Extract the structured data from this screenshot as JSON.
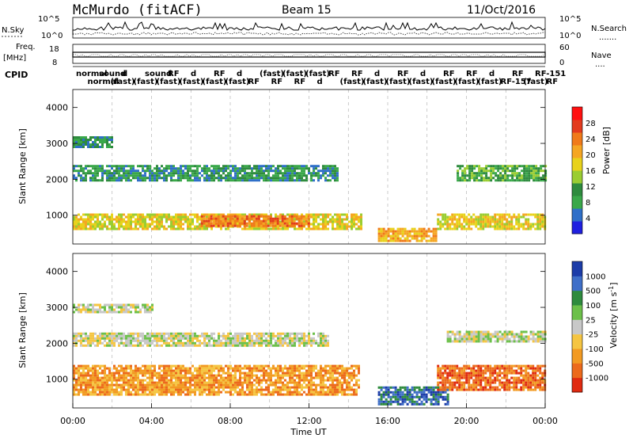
{
  "header": {
    "station": "McMurdo (fitACF)",
    "beam": "Beam 15",
    "date": "11/Oct/2016"
  },
  "top_panels": {
    "nsky": {
      "label": "N.Sky",
      "ticks": [
        "10^5",
        "10^0"
      ],
      "right_label": "N.Search",
      "right_ticks": [
        "10^5",
        "10^0"
      ],
      "dotted_note": "......."
    },
    "freq": {
      "label_lines": [
        "Freq.",
        "[MHz]"
      ],
      "ticks": [
        "18",
        "8"
      ],
      "right_label": "Nave",
      "right_ticks": [
        "60",
        "0"
      ],
      "dotted_note": "...."
    },
    "cpid": {
      "label": "CPID",
      "entries": [
        "normal",
        "normal",
        "sound",
        "(fast)",
        "d",
        "(fast)",
        "sound",
        "(fast)",
        "RF",
        "(fast)",
        "d",
        "(fast)",
        "RF",
        "(fast)",
        "d",
        "RF",
        "(fast)",
        "RF",
        "(fast)",
        "RF",
        "(fast)",
        "d",
        "RF",
        "(fast)",
        "RF",
        "(fast)",
        "d",
        "(fast)",
        "RF",
        "(fast)",
        "d",
        "(fast)",
        "RF",
        "(fast)",
        "RF",
        "(fast)",
        "d",
        "RF-157",
        "RF",
        "(fast)",
        "RF-151",
        "RF"
      ]
    }
  },
  "colors": {
    "power_scale": [
      "#1f1fe0",
      "#2f6fc8",
      "#3aa84a",
      "#2e8b3e",
      "#9acd32",
      "#e8d21c",
      "#f5a623",
      "#f07a1a",
      "#e33b1e",
      "#ff1010"
    ],
    "velocity_scale": [
      "#1c3ca8",
      "#3f6fc8",
      "#2e8b3e",
      "#6cc04a",
      "#c8c8c8",
      "#f5c542",
      "#f29a22",
      "#ec6a1c",
      "#e02a10"
    ]
  },
  "chart_data": [
    {
      "type": "heatmap",
      "name": "power",
      "ylabel": "Slant Range [km]",
      "ylim": [
        200,
        4500
      ],
      "yticks": [
        "1000",
        "2000",
        "3000",
        "4000"
      ],
      "xlim": [
        0,
        24
      ],
      "colorbar": {
        "label": "Power [dB]",
        "ticks": [
          "28",
          "24",
          "20",
          "16",
          "12",
          "8",
          "4"
        ],
        "range": [
          0,
          32
        ]
      },
      "bands": [
        {
          "t0": 0.0,
          "t1": 14.7,
          "r0": 600,
          "r1": 1050,
          "value": 18
        },
        {
          "t0": 6.5,
          "t1": 12.0,
          "r0": 700,
          "r1": 1000,
          "value": 26
        },
        {
          "t0": 0.0,
          "t1": 13.5,
          "r0": 2000,
          "r1": 2400,
          "value": 8
        },
        {
          "t0": 0.0,
          "t1": 2.0,
          "r0": 2900,
          "r1": 3200,
          "value": 6
        },
        {
          "t0": 15.5,
          "t1": 18.5,
          "r0": 300,
          "r1": 650,
          "value": 22
        },
        {
          "t0": 18.5,
          "t1": 24.0,
          "r0": 650,
          "r1": 1050,
          "value": 18
        },
        {
          "t0": 19.5,
          "t1": 24.0,
          "r0": 2000,
          "r1": 2400,
          "value": 10
        }
      ]
    },
    {
      "type": "heatmap",
      "name": "velocity",
      "ylabel": "Slant Range [km]",
      "ylim": [
        200,
        4500
      ],
      "yticks": [
        "1000",
        "2000",
        "3000",
        "4000"
      ],
      "xlim": [
        0,
        24
      ],
      "xlabel": "Time UT",
      "xticks": [
        "00:00",
        "04:00",
        "08:00",
        "12:00",
        "16:00",
        "20:00",
        "00:00"
      ],
      "colorbar": {
        "label": "Velocity [m s^-1]",
        "ticks": [
          "1000",
          "500",
          "100",
          "25",
          "-25",
          "-100",
          "-500",
          "-1000"
        ]
      },
      "bands": [
        {
          "t0": 0.0,
          "t1": 14.5,
          "r0": 600,
          "r1": 1400,
          "value": -150
        },
        {
          "t0": 0.0,
          "t1": 13.0,
          "r0": 1950,
          "r1": 2300,
          "value": 0
        },
        {
          "t0": 0.0,
          "t1": 4.0,
          "r0": 2850,
          "r1": 3100,
          "value": 10
        },
        {
          "t0": 15.5,
          "t1": 19.0,
          "r0": 300,
          "r1": 800,
          "value": 200
        },
        {
          "t0": 18.5,
          "t1": 24.0,
          "r0": 700,
          "r1": 1400,
          "value": -200
        },
        {
          "t0": 19.0,
          "t1": 24.0,
          "r0": 2050,
          "r1": 2350,
          "value": 0
        }
      ]
    }
  ]
}
